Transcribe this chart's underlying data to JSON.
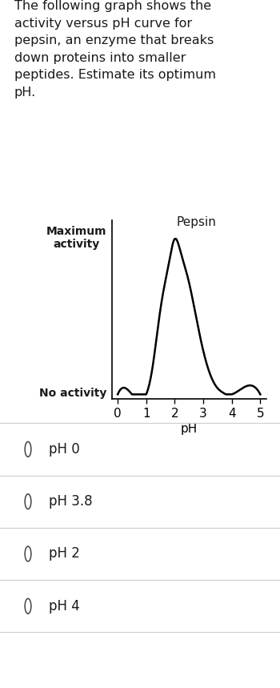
{
  "description_text": "The following graph shows the\nactivity versus pH curve for\npepsin, an enzyme that breaks\ndown proteins into smaller\npeptides. Estimate its optimum\npH.",
  "curve_label": "Pepsin",
  "ylabel_top": "Maximum\nactivity",
  "ylabel_bottom": "No activity",
  "xlabel": "pH",
  "xticks": [
    0,
    1,
    2,
    3,
    4,
    5
  ],
  "xlim": [
    -0.2,
    5.2
  ],
  "curve_color": "#000000",
  "curve_lw": 1.8,
  "bg_color": "#ffffff",
  "text_color": "#1a1a1a",
  "options": [
    "pH 0",
    "pH 3.8",
    "pH 2",
    "pH 4"
  ],
  "font_size_desc": 11.5,
  "font_size_axis": 11,
  "font_size_curve_label": 11,
  "font_size_ylabel": 10,
  "font_size_options": 12,
  "curve_ph": [
    0.0,
    0.5,
    1.0,
    1.2,
    1.5,
    1.8,
    2.0,
    2.2,
    2.5,
    2.8,
    3.0,
    3.2,
    3.5,
    3.7,
    3.8,
    4.0,
    5.0
  ],
  "curve_act": [
    0.0,
    0.0,
    0.0,
    0.15,
    0.55,
    0.85,
    1.0,
    0.92,
    0.72,
    0.45,
    0.28,
    0.15,
    0.04,
    0.01,
    0.0,
    0.0,
    0.0
  ]
}
